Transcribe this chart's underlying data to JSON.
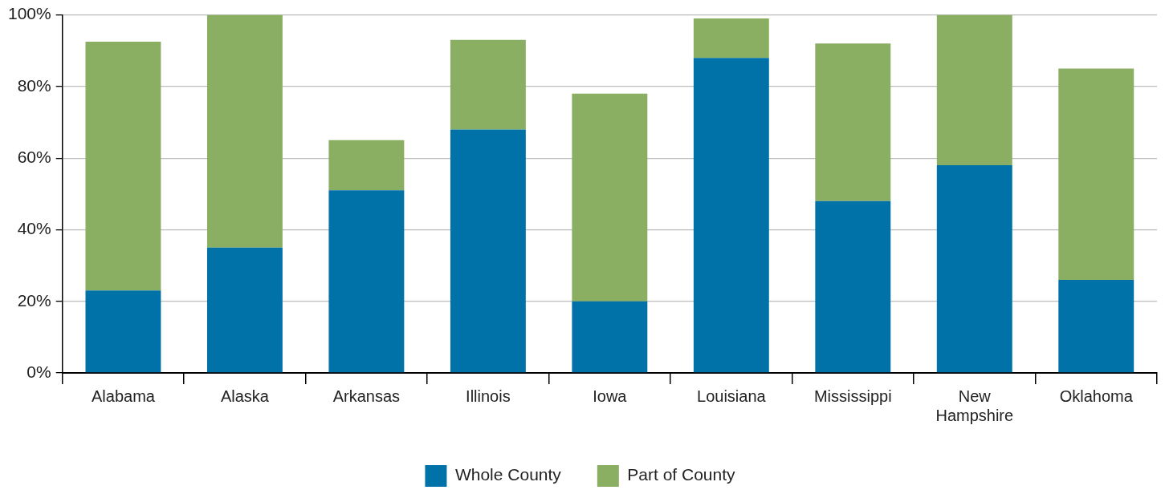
{
  "chart_data": {
    "type": "bar",
    "stacked": true,
    "categories": [
      "Alabama",
      "Alaska",
      "Arkansas",
      "Illinois",
      "Iowa",
      "Louisiana",
      "Mississippi",
      "New Hampshire",
      "Oklahoma"
    ],
    "series": [
      {
        "name": "Whole County",
        "color": "#0072a8",
        "values": [
          23,
          35,
          51,
          68,
          20,
          88,
          48,
          58,
          26
        ]
      },
      {
        "name": "Part of County",
        "color": "#8aae62",
        "values": [
          69.5,
          65,
          14,
          25,
          58,
          11,
          44,
          42,
          59
        ]
      }
    ],
    "ylim": [
      0,
      100
    ],
    "yticks": [
      {
        "value": 0,
        "label": "0%"
      },
      {
        "value": 20,
        "label": "20%"
      },
      {
        "value": 40,
        "label": "40%"
      },
      {
        "value": 60,
        "label": "60%"
      },
      {
        "value": 80,
        "label": "80%"
      },
      {
        "value": 100,
        "label": "100%"
      }
    ],
    "grid": "y",
    "legend": "bottom"
  }
}
